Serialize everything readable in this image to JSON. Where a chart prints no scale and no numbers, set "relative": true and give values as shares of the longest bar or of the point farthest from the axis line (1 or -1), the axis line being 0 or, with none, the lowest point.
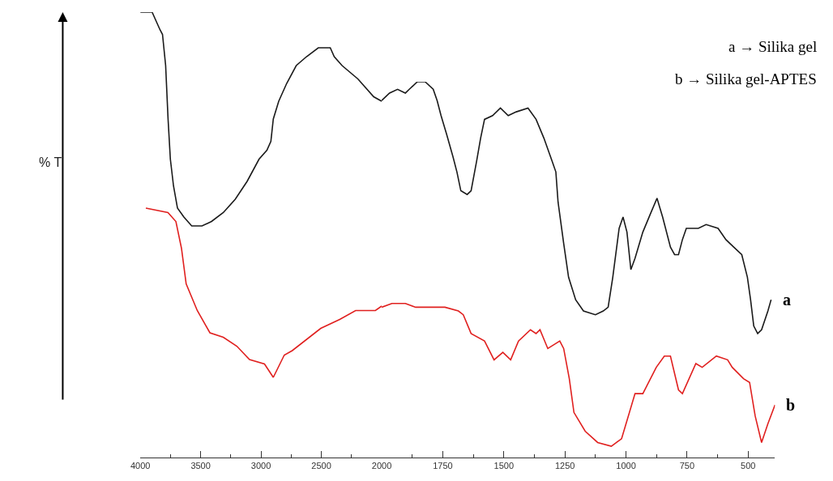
{
  "chart_data": [
    {
      "type": "line",
      "relative": true,
      "ylabel": "% T",
      "xlim": [
        4000,
        2000
      ],
      "xticks": [
        4000,
        3500,
        3000,
        2500,
        2000
      ],
      "marker": "none",
      "line_style": "solid",
      "tick_labels": "x",
      "series": [
        {
          "color": "#1a1a1a",
          "x": [
            4000,
            3902,
            3869,
            3836,
            3816,
            3790,
            3770,
            3751,
            3725,
            3692,
            3639,
            3574,
            3489,
            3410,
            3312,
            3213,
            3115,
            3016,
            2951,
            2918,
            2898,
            2853,
            2787,
            2708,
            2623,
            2525,
            2459,
            2426,
            2393,
            2328,
            2197,
            2066,
            2000
          ],
          "values": [
            1.0,
            1.0,
            0.98,
            0.96,
            0.95,
            0.88,
            0.76,
            0.67,
            0.61,
            0.56,
            0.54,
            0.52,
            0.52,
            0.53,
            0.55,
            0.58,
            0.62,
            0.67,
            0.69,
            0.71,
            0.76,
            0.8,
            0.84,
            0.88,
            0.9,
            0.92,
            0.92,
            0.92,
            0.9,
            0.88,
            0.85,
            0.81,
            0.8
          ]
        },
        {
          "color": "#e0201f",
          "x": [
            3954,
            3771,
            3705,
            3659,
            3620,
            3528,
            3423,
            3312,
            3200,
            3095,
            2971,
            2898,
            2807,
            2741,
            2505,
            2348,
            2216,
            2052,
            2000
          ],
          "values": [
            0.56,
            0.55,
            0.53,
            0.47,
            0.39,
            0.33,
            0.28,
            0.27,
            0.25,
            0.22,
            0.21,
            0.18,
            0.23,
            0.24,
            0.29,
            0.31,
            0.33,
            0.33,
            0.34
          ]
        }
      ]
    },
    {
      "type": "line",
      "relative": true,
      "xlim": [
        2000,
        390
      ],
      "xticks": [
        1750,
        1500,
        1250,
        1000,
        750,
        500
      ],
      "marker": "none",
      "line_style": "solid",
      "tick_labels": "x",
      "annotations": [
        "a → Silika gel",
        "b → Silika gel-APTES"
      ],
      "series": [
        {
          "name": "a",
          "color": "#1a1a1a",
          "x": [
            2000,
            1968,
            1935,
            1903,
            1887,
            1854,
            1822,
            1789,
            1773,
            1757,
            1734,
            1708,
            1692,
            1676,
            1650,
            1634,
            1611,
            1595,
            1579,
            1546,
            1514,
            1482,
            1449,
            1401,
            1368,
            1336,
            1303,
            1287,
            1278,
            1255,
            1235,
            1206,
            1174,
            1125,
            1093,
            1073,
            1054,
            1028,
            1012,
            996,
            980,
            963,
            931,
            899,
            873,
            850,
            818,
            801,
            785,
            769,
            753,
            704,
            672,
            623,
            591,
            559,
            526,
            503,
            490,
            477,
            461,
            445,
            419,
            406
          ],
          "values": [
            0.95,
            0.97,
            0.98,
            0.97,
            0.98,
            1.0,
            1.0,
            0.98,
            0.95,
            0.91,
            0.86,
            0.8,
            0.76,
            0.71,
            0.7,
            0.71,
            0.79,
            0.85,
            0.9,
            0.91,
            0.93,
            0.91,
            0.92,
            0.93,
            0.9,
            0.85,
            0.79,
            0.76,
            0.68,
            0.57,
            0.48,
            0.42,
            0.39,
            0.38,
            0.39,
            0.4,
            0.48,
            0.61,
            0.64,
            0.6,
            0.5,
            0.53,
            0.6,
            0.65,
            0.69,
            0.64,
            0.56,
            0.54,
            0.54,
            0.58,
            0.61,
            0.61,
            0.62,
            0.61,
            0.58,
            0.56,
            0.54,
            0.48,
            0.42,
            0.35,
            0.33,
            0.34,
            0.39,
            0.42
          ]
        },
        {
          "name": "b",
          "color": "#e0201f",
          "x": [
            2000,
            1958,
            1903,
            1861,
            1741,
            1686,
            1666,
            1634,
            1579,
            1540,
            1504,
            1472,
            1440,
            1391,
            1368,
            1352,
            1320,
            1271,
            1255,
            1232,
            1213,
            1167,
            1116,
            1060,
            1018,
            963,
            931,
            876,
            843,
            818,
            785,
            769,
            714,
            688,
            630,
            584,
            565,
            519,
            494,
            471,
            445,
            419,
            390
          ],
          "values": [
            0.4,
            0.41,
            0.41,
            0.4,
            0.4,
            0.39,
            0.38,
            0.33,
            0.31,
            0.26,
            0.28,
            0.26,
            0.31,
            0.34,
            0.33,
            0.34,
            0.29,
            0.31,
            0.29,
            0.21,
            0.12,
            0.07,
            0.04,
            0.03,
            0.05,
            0.17,
            0.17,
            0.24,
            0.27,
            0.27,
            0.18,
            0.17,
            0.25,
            0.24,
            0.27,
            0.26,
            0.24,
            0.21,
            0.2,
            0.11,
            0.04,
            0.09,
            0.14
          ]
        }
      ]
    }
  ]
}
